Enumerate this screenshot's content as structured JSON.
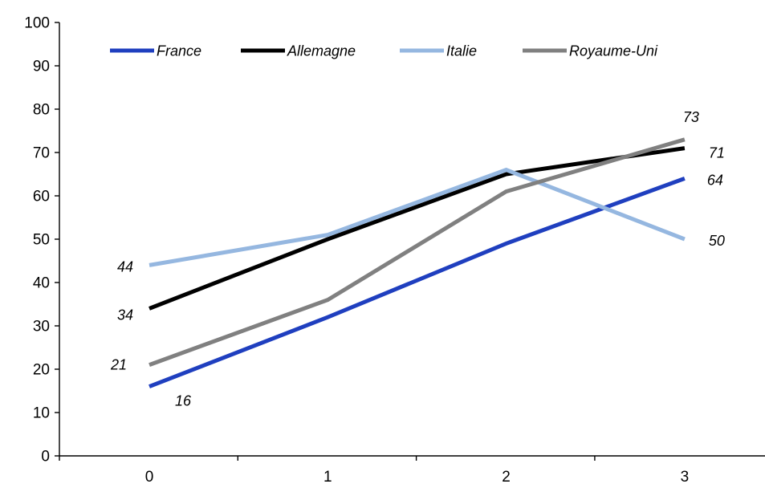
{
  "chart_data": {
    "type": "line",
    "title": "",
    "xlabel": "",
    "ylabel": "",
    "x": [
      0,
      1,
      2,
      3
    ],
    "x_tick_labels": [
      "0",
      "1",
      "2",
      "3"
    ],
    "ylim": [
      0,
      100
    ],
    "y_ticks": [
      0,
      10,
      20,
      30,
      40,
      50,
      60,
      70,
      80,
      90,
      100
    ],
    "y_tick_labels": [
      "0",
      "10",
      "20",
      "30",
      "40",
      "50",
      "60",
      "70",
      "80",
      "90",
      "100"
    ],
    "grid": false,
    "legend_position": "top",
    "series": [
      {
        "key": "france",
        "name": "France",
        "color": "#1F3FBF",
        "values": [
          16,
          32,
          49,
          64
        ],
        "labels": [
          {
            "index": 0,
            "text": "16"
          },
          {
            "index": 3,
            "text": "64"
          }
        ]
      },
      {
        "key": "allemagne",
        "name": "Allemagne",
        "color": "#000000",
        "values": [
          34,
          50,
          65,
          71
        ],
        "labels": [
          {
            "index": 0,
            "text": "34"
          },
          {
            "index": 3,
            "text": "71"
          }
        ]
      },
      {
        "key": "italie",
        "name": "Italie",
        "color": "#95B7E0",
        "values": [
          44,
          51,
          66,
          50
        ],
        "labels": [
          {
            "index": 0,
            "text": "44"
          },
          {
            "index": 3,
            "text": "50"
          }
        ]
      },
      {
        "key": "royaume_uni",
        "name": "Royaume-Uni",
        "color": "#808080",
        "values": [
          21,
          36,
          61,
          73
        ],
        "labels": [
          {
            "index": 0,
            "text": "21"
          },
          {
            "index": 3,
            "text": "73"
          }
        ]
      }
    ]
  }
}
